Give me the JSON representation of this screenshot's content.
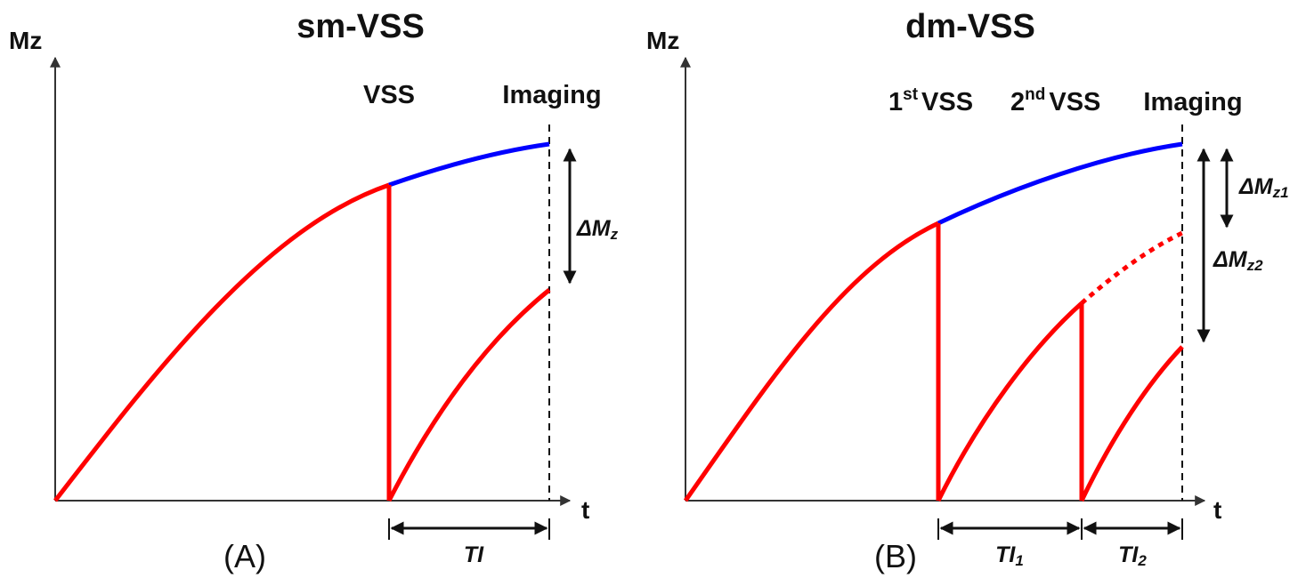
{
  "panel_a": {
    "title": "sm-VSS",
    "y_axis_label": "Mz",
    "x_axis_label": "t",
    "event_vss": "VSS",
    "event_imaging": "Imaging",
    "delta_main": "ΔM",
    "delta_sub": "z",
    "ti_label": "TI",
    "panel_label": "(A)"
  },
  "panel_b": {
    "title": "dm-VSS",
    "y_axis_label": "Mz",
    "x_axis_label": "t",
    "event_first_main": "1",
    "event_first_sup": "st",
    "event_first_tail": "VSS",
    "event_second_main": "2",
    "event_second_sup": "nd",
    "event_second_tail": "VSS",
    "event_imaging": "Imaging",
    "delta1_main": "ΔM",
    "delta1_sub": "z1",
    "delta2_main": "ΔM",
    "delta2_sub": "z2",
    "ti1_main": "TI",
    "ti1_sub": "1",
    "ti2_main": "TI",
    "ti2_sub": "2",
    "panel_label": "(B)"
  },
  "colors": {
    "relaxation_curve": "#ff0000",
    "control_curve": "#0000ff",
    "axes": "#333333"
  }
}
